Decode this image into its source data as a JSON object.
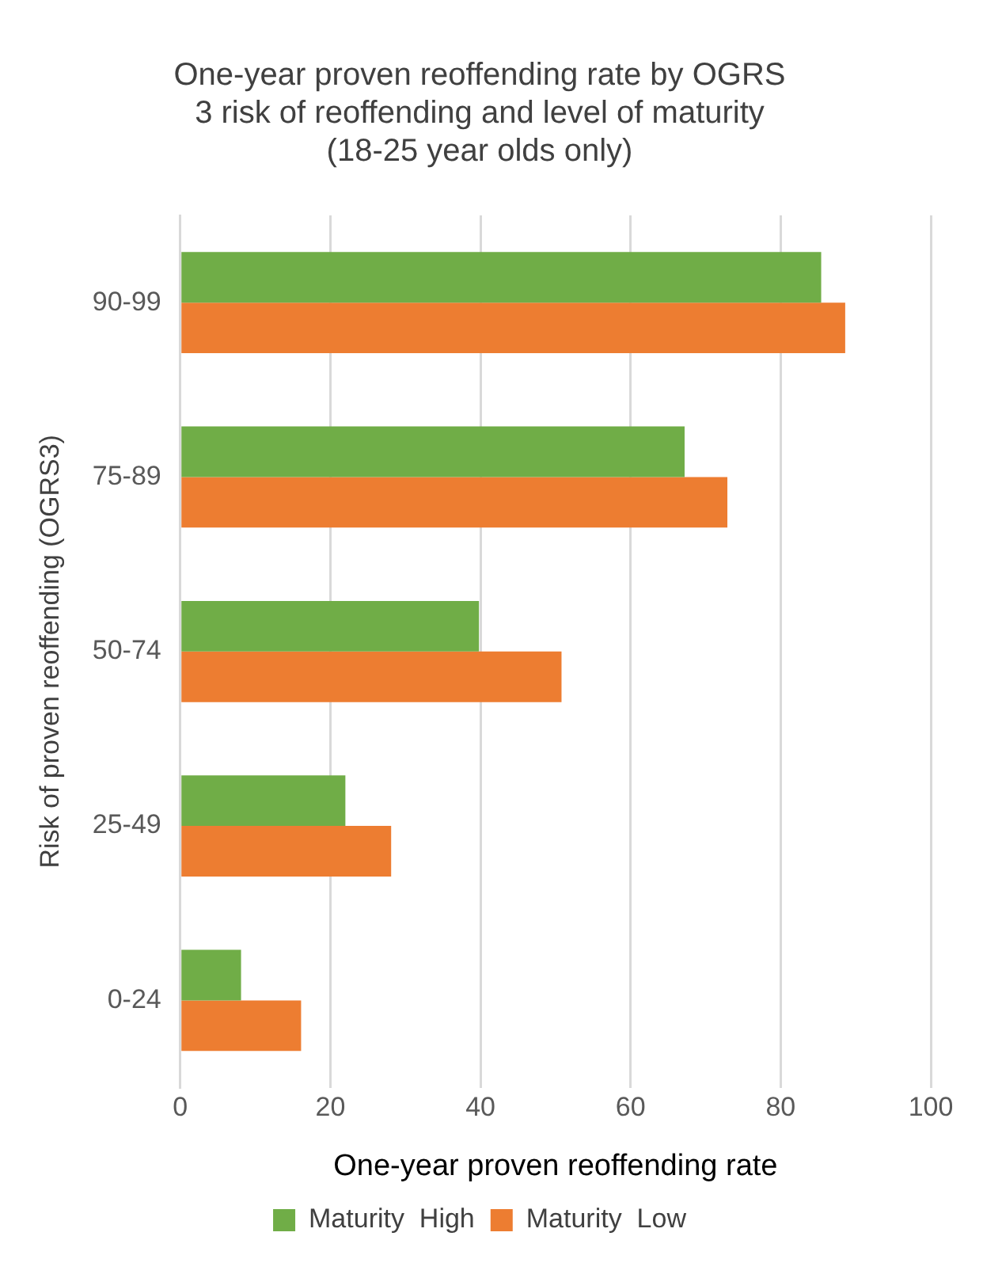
{
  "chart_data": {
    "type": "bar",
    "orientation": "horizontal",
    "title": "One-year proven reoffending rate by OGRS 3 risk of reoffending and level of maturity (18-25 year olds only)",
    "xlabel": "One-year proven reoffending rate",
    "ylabel": "Risk of proven reoffending (OGRS3)",
    "categories": [
      "90-99",
      "75-89",
      "50-74",
      "25-49",
      "0-24"
    ],
    "series": [
      {
        "name": "Maturity  High",
        "color": "#70ad47",
        "values": [
          85.4,
          67.2,
          39.8,
          22.0,
          8.1
        ]
      },
      {
        "name": "Maturity  Low",
        "color": "#ed7d31",
        "values": [
          88.6,
          72.9,
          50.8,
          28.1,
          16.1
        ]
      }
    ],
    "xlim": [
      0,
      100
    ],
    "xticks": [
      0,
      20,
      40,
      60,
      80,
      100
    ],
    "grid": "x",
    "legend": "bottom"
  }
}
